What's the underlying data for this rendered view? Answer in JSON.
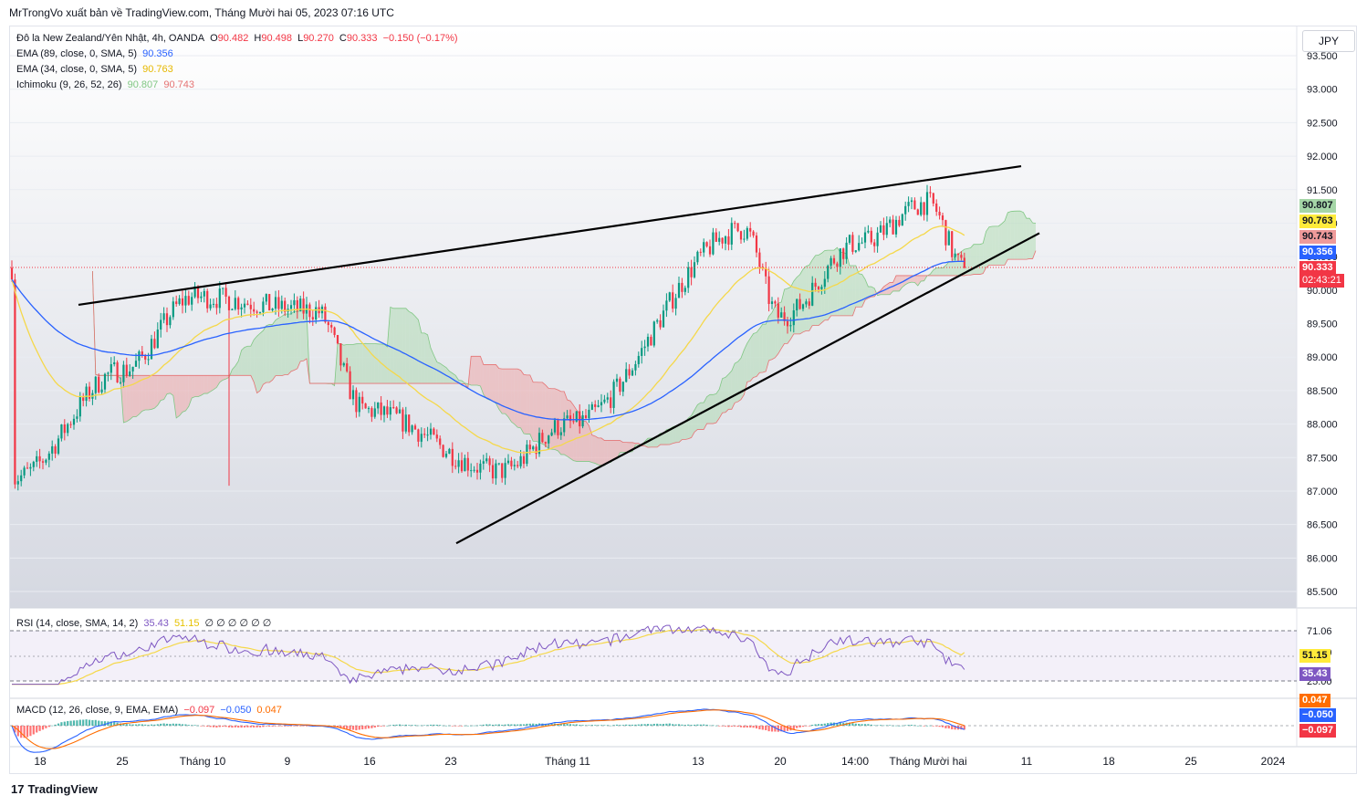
{
  "header": {
    "published": "MrTrongVo xuất bản về TradingView.com, Tháng Mười hai 05, 2023 07:16 UTC"
  },
  "currency_button": "JPY",
  "footer": {
    "brand": "TradingView",
    "logo": "17"
  },
  "legend": {
    "symbol": "Đô la New Zealand/Yên Nhật, 4h, OANDA",
    "o_label": "O",
    "o": "90.482",
    "h_label": "H",
    "h": "90.498",
    "l_label": "L",
    "l": "90.270",
    "c_label": "C",
    "c": "90.333",
    "change": "−0.150 (−0.17%)",
    "ema89": "EMA (89, close, 0, SMA, 5)",
    "ema89_value": "90.356",
    "ema34": "EMA (34, close, 0, SMA, 5)",
    "ema34_value": "90.763",
    "ichimoku": "Ichimoku (9, 26, 52, 26)",
    "ichi_value1": "90.807",
    "ichi_value2": "90.743",
    "rsi": "RSI (14, close, SMA, 14, 2)",
    "rsi_value": "35.43",
    "rsi_ma_value": "51.15",
    "rsi_extra": "∅ ∅ ∅ ∅ ∅ ∅",
    "macd": "MACD (12, 26, close, 9, EMA, EMA)",
    "macd_hist": "−0.097",
    "macd_line": "−0.050",
    "macd_signal": "0.047"
  },
  "price_tags": {
    "ichi_a": "90.807",
    "ema34": "90.763",
    "ichi_b": "90.743",
    "ema89": "90.356",
    "close": "90.333",
    "countdown": "02:43:21",
    "rsi_ma": "51.15",
    "rsi": "35.43",
    "macd_signal": "0.047",
    "macd_line": "−0.050",
    "macd_hist": "−0.097"
  },
  "colors": {
    "up": "#089981",
    "down": "#f23645",
    "ema34": "#f5d84a",
    "ema89": "#2962ff",
    "cloud_bull": "#a5d6a7",
    "cloud_bear": "#ef9a9a",
    "rsi": "#7e57c2",
    "rsi_ma": "#f5d84a",
    "macd_line": "#2962ff",
    "macd_signal": "#ff6d00"
  },
  "chart_data": [
    {
      "type": "candlestick",
      "title": "Đô la New Zealand/Yên Nhật, 4h, OANDA",
      "ylim": [
        85.3,
        93.5
      ],
      "y_ticks": [
        "93.500",
        "93.000",
        "92.500",
        "92.000",
        "91.500",
        "91.000",
        "90.500",
        "90.000",
        "89.500",
        "89.000",
        "88.500",
        "88.000",
        "87.500",
        "87.000",
        "86.500",
        "86.000",
        "85.500"
      ],
      "x_ticks": [
        "18",
        "25",
        "Tháng 10",
        "9",
        "16",
        "23",
        "Tháng 11",
        "13",
        "20",
        "14:00",
        "Tháng Mười hai",
        "11",
        "18",
        "25",
        "2024"
      ],
      "close_path": [
        {
          "x": "18",
          "y": 87.2
        },
        {
          "x": "25",
          "y": 88.8
        },
        {
          "x": "Tháng 10",
          "y": 89.9
        },
        {
          "x": "9",
          "y": 89.7
        },
        {
          "x": "16",
          "y": 88.2
        },
        {
          "x": "23",
          "y": 87.3
        },
        {
          "x": "Tháng 11",
          "y": 88.0
        },
        {
          "x": "13",
          "y": 90.9
        },
        {
          "x": "20",
          "y": 89.6
        },
        {
          "x": "14:00",
          "y": 90.7
        },
        {
          "x": "Tháng Mười hai",
          "y": 91.3
        }
      ],
      "trendlines": [
        {
          "name": "upper",
          "from": 89.78,
          "to": 91.85
        },
        {
          "name": "lower",
          "from": 86.22,
          "to": 90.85
        }
      ],
      "last_close": 90.333
    },
    {
      "type": "line",
      "title": "RSI (14, close, SMA, 14, 2)",
      "ylim": [
        20,
        75
      ],
      "y_ticks": [
        "71.06",
        "51.39",
        "25.00"
      ],
      "last": 35.43,
      "ma_last": 51.15
    },
    {
      "type": "bar",
      "title": "MACD (12, 26, close, 9, EMA, EMA)",
      "last_hist": -0.097,
      "last_macd": -0.05,
      "last_signal": 0.047
    }
  ]
}
